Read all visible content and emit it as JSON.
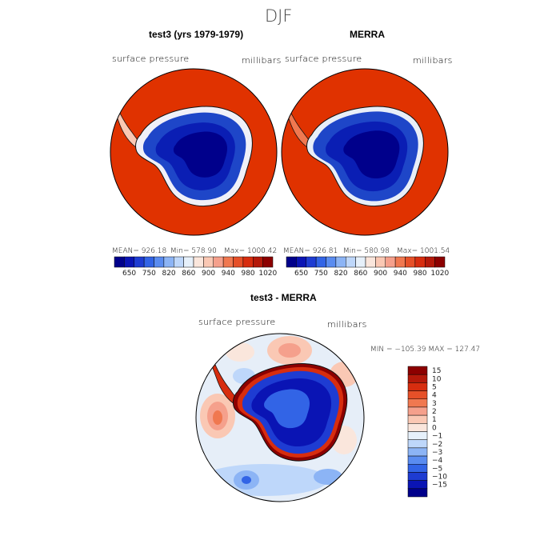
{
  "figure_title": "DJF",
  "panels": [
    {
      "title": "test3 (yrs 1979-1979)",
      "field_label": "surface pressure",
      "units": "millibars",
      "stats": {
        "mean_label": "MEAN= 926.18",
        "min_label": "Min= 578.90",
        "max_label": "Max= 1000.42"
      }
    },
    {
      "title": "MERRA",
      "field_label": "surface pressure",
      "units": "millibars",
      "stats": {
        "mean_label": "MEAN= 926.81",
        "min_label": "Min= 580.98",
        "max_label": "Max= 1001.54"
      }
    },
    {
      "title": "test3 - MERRA",
      "field_label": "surface pressure",
      "units": "millibars",
      "stats": {
        "minmax_label": "MIN = −105.39  MAX = 127.47"
      }
    }
  ],
  "chart_data": [
    {
      "type": "heatmap",
      "title": "test3 (yrs 1979-1979)",
      "projection": "south polar stereographic",
      "variable": "surface pressure",
      "units": "millibars",
      "mean": 926.18,
      "min": 578.9,
      "max": 1000.42,
      "colorbar": {
        "orientation": "horizontal",
        "tick_labels": [
          "650",
          "750",
          "820",
          "860",
          "900",
          "940",
          "980",
          "1020"
        ],
        "colors": [
          "#00008b",
          "#0a14b4",
          "#1e3cd2",
          "#3264e6",
          "#5a8cf0",
          "#8cb4f5",
          "#bed7fa",
          "#e6f0fa",
          "#fae6dc",
          "#fac8b4",
          "#f5a08c",
          "#f07850",
          "#e65028",
          "#d72d0f",
          "#b4190a",
          "#8c0000"
        ]
      }
    },
    {
      "type": "heatmap",
      "title": "MERRA",
      "projection": "south polar stereographic",
      "variable": "surface pressure",
      "units": "millibars",
      "mean": 926.81,
      "min": 580.98,
      "max": 1001.54,
      "colorbar": {
        "orientation": "horizontal",
        "tick_labels": [
          "650",
          "750",
          "820",
          "860",
          "900",
          "940",
          "980",
          "1020"
        ],
        "colors": [
          "#00008b",
          "#0a14b4",
          "#1e3cd2",
          "#3264e6",
          "#5a8cf0",
          "#8cb4f5",
          "#bed7fa",
          "#e6f0fa",
          "#fae6dc",
          "#fac8b4",
          "#f5a08c",
          "#f07850",
          "#e65028",
          "#d72d0f",
          "#b4190a",
          "#8c0000"
        ]
      }
    },
    {
      "type": "heatmap",
      "title": "test3 - MERRA",
      "projection": "south polar stereographic",
      "variable": "surface pressure",
      "units": "millibars",
      "min": -105.39,
      "max": 127.47,
      "colorbar": {
        "orientation": "vertical",
        "tick_labels": [
          "15",
          "10",
          "5",
          "4",
          "3",
          "2",
          "1",
          "0",
          "−1",
          "−2",
          "−3",
          "−4",
          "−5",
          "−10",
          "−15"
        ],
        "colors": [
          "#8c0000",
          "#b4190a",
          "#d72d0f",
          "#e65028",
          "#f07850",
          "#f5a08c",
          "#fac8b4",
          "#fae6dc",
          "#e6f0fa",
          "#bed7fa",
          "#8cb4f5",
          "#5a8cf0",
          "#3264e6",
          "#1e3cd2",
          "#0a14b4",
          "#00008b"
        ]
      }
    }
  ],
  "colors": {
    "ocean_pressure": "#e03200",
    "ice_high": "#1e46c8",
    "ice_low": "#00008b",
    "diff_positive": "#e65028",
    "diff_negative": "#3264e6",
    "diff_neutral": "#f0f4fa"
  }
}
